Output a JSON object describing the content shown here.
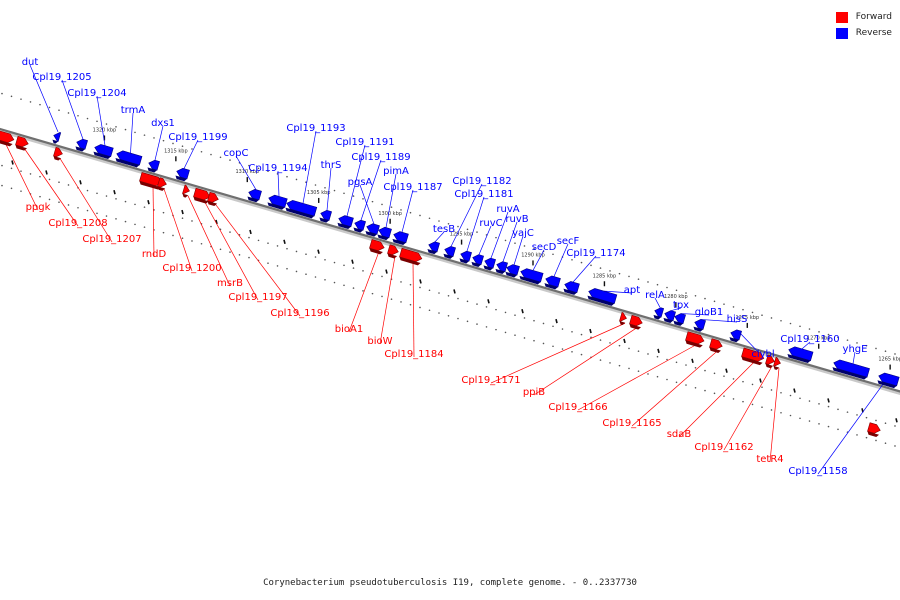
{
  "legend": {
    "forward_label": "Forward",
    "reverse_label": "Reverse",
    "forward_color": "#ff0000",
    "reverse_color": "#0000ff"
  },
  "caption": "Corynebacterium pseudotuberculosis I19, complete genome. - 0..2337730",
  "map": {
    "range_kbp": [
      1262,
      1325
    ],
    "tick_labels": [
      "1320 kbp",
      "1315 kbp",
      "1310 kbp",
      "1305 kbp",
      "1300 kbp",
      "1295 kbp",
      "1290 kbp",
      "1285 kbp",
      "1280 kbp",
      "1275 kbp",
      "1270 kbp",
      "1265 kbp"
    ],
    "forward_genes": [
      "ppgk",
      "Cpl19_1208",
      "Cpl19_1207",
      "rndD",
      "Cpl19_1200",
      "msrB",
      "Cpl19_1197",
      "Cpl19_1196",
      "bioA1",
      "bioW",
      "Cpl19_1184",
      "Cpl19_1171",
      "ppiB",
      "Cpl19_1166",
      "Cpl19_1165",
      "sdaB",
      "Cpl19_1162",
      "tetR4"
    ],
    "reverse_genes": [
      "dut",
      "Cpl19_1205",
      "Cpl19_1204",
      "trmA",
      "dxs1",
      "Cpl19_1199",
      "copC",
      "Cpl19_1194",
      "Cpl19_1193",
      "thrS",
      "Cpl19_1191",
      "Cpl19_1189",
      "pgsA",
      "pimA",
      "Cpl19_1187",
      "tesB",
      "Cpl19_1182",
      "Cpl19_1181",
      "ruvC",
      "ruvA",
      "ruvB",
      "yajC",
      "secD",
      "secF",
      "Cpl19_1174",
      "apt",
      "relA",
      "tpx",
      "gloB1",
      "hisS",
      "clybl",
      "Cpl19_1160",
      "yhgE",
      "Cpl19_1158"
    ]
  }
}
